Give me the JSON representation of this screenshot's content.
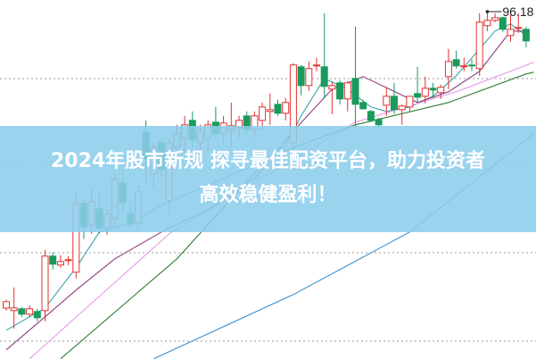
{
  "banner": {
    "title_line1": "2024年股市新规 探寻最佳配资平台，助力投资者",
    "title_line2": "高效稳健盈利！"
  },
  "chart_data": {
    "type": "candlestick",
    "grid": "horizontal dotted",
    "max_label": "96.18",
    "colors": {
      "up": "#e0312f",
      "down": "#1a9a5c",
      "banner": "#8ccdec"
    },
    "candles_ohlc": [
      [
        62.98,
        63.9,
        62.7,
        63.7
      ],
      [
        62.7,
        65.3,
        60.7,
        63.0
      ],
      [
        62.9,
        63.1,
        62.0,
        62.3
      ],
      [
        62.3,
        63.3,
        62.0,
        62.9
      ],
      [
        62.6,
        62.9,
        61.5,
        61.9
      ],
      [
        62.7,
        69.5,
        61.5,
        68.8
      ],
      [
        68.8,
        69.2,
        67.3,
        67.9
      ],
      [
        67.8,
        68.9,
        67.5,
        68.2
      ],
      [
        68.3,
        68.8,
        67.8,
        68.4
      ],
      [
        67.0,
        75.8,
        66.3,
        74.7
      ],
      [
        74.7,
        75.1,
        70.7,
        72.1
      ],
      [
        72.3,
        76.3,
        71.3,
        74.9
      ],
      [
        74.1,
        76.0,
        71.3,
        71.9
      ],
      [
        72.0,
        74.0,
        71.2,
        73.5
      ],
      [
        73.0,
        78.0,
        72.0,
        77.4
      ],
      [
        77.0,
        78.5,
        74.0,
        74.8
      ],
      [
        73.5,
        75.0,
        72.0,
        72.4
      ],
      [
        72.5,
        76.8,
        72.0,
        76.0
      ],
      [
        82.7,
        84.0,
        77.0,
        79.7
      ],
      [
        78.0,
        81.5,
        76.5,
        81.0
      ],
      [
        81.5,
        82.0,
        77.8,
        78.5
      ],
      [
        75.0,
        82.0,
        73.5,
        81.5
      ],
      [
        81.0,
        83.5,
        79.5,
        82.5
      ],
      [
        82.0,
        84.5,
        80.0,
        83.5
      ],
      [
        84.0,
        85.0,
        81.0,
        81.8
      ],
      [
        81.5,
        83.5,
        80.5,
        82.8
      ],
      [
        82.0,
        84.0,
        80.5,
        83.5
      ],
      [
        83.8,
        85.5,
        82.0,
        82.5
      ],
      [
        82.5,
        84.5,
        81.5,
        83.7
      ],
      [
        83.0,
        86.0,
        81.0,
        83.4
      ],
      [
        83.2,
        84.5,
        82.0,
        84.0
      ],
      [
        84.5,
        85.0,
        82.5,
        83.0
      ],
      [
        83.0,
        85.0,
        82.0,
        84.5
      ],
      [
        84.0,
        86.0,
        83.0,
        85.5
      ],
      [
        85.0,
        87.0,
        83.5,
        85.2
      ],
      [
        85.8,
        86.3,
        84.5,
        84.8
      ],
      [
        84.8,
        86.5,
        84.0,
        86.0
      ],
      [
        81.5,
        90.4,
        80.5,
        90.2
      ],
      [
        90.0,
        90.2,
        86.8,
        87.9
      ],
      [
        87.9,
        90.6,
        87.3,
        89.8
      ],
      [
        90.1,
        91.0,
        89.5,
        90.2
      ],
      [
        90.0,
        96.0,
        86.5,
        87.8
      ],
      [
        87.5,
        88.3,
        84.7,
        87.9
      ],
      [
        88.2,
        88.5,
        85.8,
        86.4
      ],
      [
        86.4,
        88.4,
        85.0,
        88.2
      ],
      [
        88.7,
        94.5,
        83.2,
        85.8
      ],
      [
        86.0,
        86.3,
        85.2,
        85.3
      ],
      [
        85.0,
        85.2,
        83.8,
        84.0
      ],
      [
        84.1,
        84.3,
        83.2,
        83.5
      ],
      [
        85.7,
        87.7,
        84.5,
        86.7
      ],
      [
        86.7,
        88.2,
        84.7,
        85.2
      ],
      [
        85.2,
        85.8,
        83.5,
        85.6
      ],
      [
        85.5,
        86.7,
        85.0,
        86.7
      ],
      [
        87.0,
        90.0,
        86.0,
        86.6
      ],
      [
        86.7,
        88.9,
        85.9,
        87.6
      ],
      [
        87.6,
        88.2,
        86.5,
        87.4
      ],
      [
        87.1,
        88.0,
        86.4,
        87.7
      ],
      [
        88.9,
        92.0,
        87.5,
        90.6
      ],
      [
        90.8,
        91.8,
        89.8,
        90.1
      ],
      [
        90.0,
        91.0,
        89.5,
        90.1
      ],
      [
        90.2,
        90.8,
        89.5,
        90.1
      ],
      [
        89.8,
        96.0,
        89.0,
        95.0
      ],
      [
        94.6,
        96.18,
        94.0,
        95.2
      ],
      [
        95.2,
        96.0,
        95.0,
        95.5
      ],
      [
        95.5,
        95.6,
        93.9,
        94.2
      ],
      [
        93.5,
        95.8,
        92.8,
        94.2
      ],
      [
        94.3,
        96.0,
        93.8,
        94.4
      ],
      [
        94.2,
        94.5,
        92.2,
        92.9
      ]
    ],
    "moving_averages": [
      {
        "color": "#3aa0a8",
        "points": [
          [
            0,
            60.5
          ],
          [
            5,
            63.0
          ],
          [
            9,
            67.5
          ],
          [
            12,
            71.5
          ],
          [
            16,
            72.5
          ],
          [
            20,
            74.5
          ],
          [
            24,
            76.0
          ],
          [
            28,
            77.5
          ],
          [
            32,
            79.0
          ],
          [
            36,
            81.2
          ],
          [
            38,
            84.5
          ],
          [
            41,
            88.7
          ],
          [
            44,
            87.5
          ],
          [
            47,
            85.5
          ],
          [
            49,
            85.0
          ],
          [
            52,
            85.5
          ],
          [
            55,
            86.7
          ],
          [
            58,
            89.0
          ],
          [
            61,
            92.0
          ],
          [
            63,
            94.0
          ],
          [
            65,
            94.8
          ],
          [
            67,
            93.5
          ]
        ]
      },
      {
        "color": "#8b3a7a",
        "points": [
          [
            0,
            58.3
          ],
          [
            5,
            62.0
          ],
          [
            9,
            65.0
          ],
          [
            14,
            68.5
          ],
          [
            20,
            71.5
          ],
          [
            26,
            74.0
          ],
          [
            32,
            77.5
          ],
          [
            37,
            82.8
          ],
          [
            42,
            87.5
          ],
          [
            46,
            88.9
          ],
          [
            53,
            86.0
          ],
          [
            57,
            87.2
          ],
          [
            61,
            89.5
          ],
          [
            65,
            94.0
          ],
          [
            67,
            94.0
          ]
        ]
      },
      {
        "color": "#e89be8",
        "points": [
          [
            3,
            57.3
          ],
          [
            21,
            71.3
          ],
          [
            45,
            83.8
          ],
          [
            58,
            87.2
          ],
          [
            68,
            90.5
          ]
        ]
      },
      {
        "color": "#2e7d32",
        "points": [
          [
            7,
            57.3
          ],
          [
            22,
            68.5
          ],
          [
            34,
            80.0
          ],
          [
            45,
            83.5
          ],
          [
            57,
            86.0
          ],
          [
            67,
            89.2
          ],
          [
            68,
            89.4
          ]
        ]
      },
      {
        "color": "#3a8fcf",
        "points": [
          [
            19,
            57.3
          ],
          [
            22,
            58.5
          ],
          [
            37,
            64.5
          ],
          [
            52,
            71.5
          ],
          [
            68,
            82.5
          ]
        ]
      }
    ]
  }
}
